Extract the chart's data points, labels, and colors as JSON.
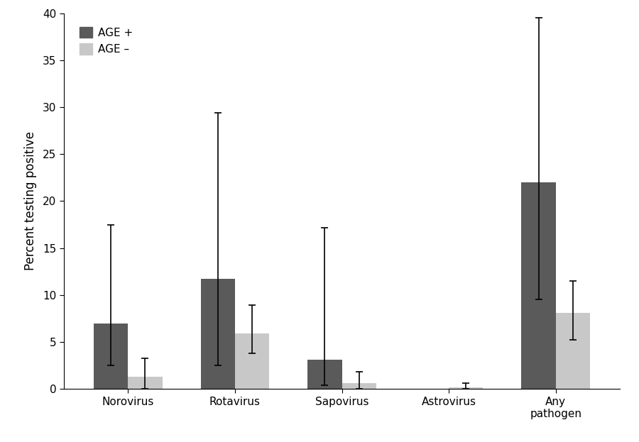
{
  "categories": [
    "Norovirus",
    "Rotavirus",
    "Sapovirus",
    "Astrovirus",
    "Any\npathogen"
  ],
  "age_plus": {
    "values": [
      7.0,
      11.7,
      3.1,
      0.0,
      22.0
    ],
    "ci_lower": [
      2.5,
      2.5,
      0.4,
      0.0,
      9.5
    ],
    "ci_upper": [
      17.5,
      29.4,
      17.2,
      0.0,
      39.5
    ],
    "color": "#5a5a5a"
  },
  "age_minus": {
    "values": [
      1.3,
      5.9,
      0.6,
      0.2,
      8.1
    ],
    "ci_lower": [
      0.0,
      3.8,
      0.0,
      0.0,
      5.2
    ],
    "ci_upper": [
      3.3,
      8.9,
      1.8,
      0.6,
      11.5
    ],
    "color": "#c8c8c8"
  },
  "ylabel": "Percent testing positive",
  "ylim": [
    0,
    40
  ],
  "yticks": [
    0,
    5,
    10,
    15,
    20,
    25,
    30,
    35,
    40
  ],
  "legend_labels": [
    "AGE +",
    "AGE –"
  ],
  "bar_width": 0.32,
  "background_color": "#ffffff",
  "label_fontsize": 12,
  "tick_fontsize": 11,
  "legend_fontsize": 11
}
